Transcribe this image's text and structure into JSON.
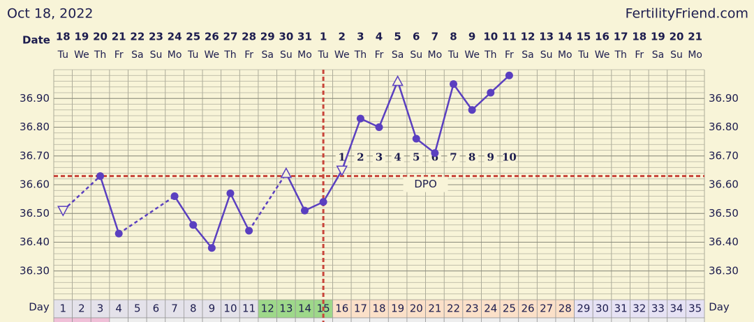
{
  "chart_data": {
    "type": "line",
    "header_date": "Oct 18, 2022",
    "site": "FertilityFriend.com",
    "date_label": "Date",
    "day_label": "Day",
    "dates": [
      "18",
      "19",
      "20",
      "21",
      "22",
      "23",
      "24",
      "25",
      "26",
      "27",
      "28",
      "29",
      "30",
      "31",
      "1",
      "2",
      "3",
      "4",
      "5",
      "6",
      "7",
      "8",
      "9",
      "10",
      "11",
      "12",
      "13",
      "14",
      "15",
      "16",
      "17",
      "18",
      "19",
      "20",
      "21"
    ],
    "weekdays": [
      "Tu",
      "We",
      "Th",
      "Fr",
      "Sa",
      "Su",
      "Mo",
      "Tu",
      "We",
      "Th",
      "Fr",
      "Sa",
      "Su",
      "Mo",
      "Tu",
      "We",
      "Th",
      "Fr",
      "Sa",
      "Su",
      "Mo",
      "Tu",
      "We",
      "Th",
      "Fr",
      "Sa",
      "Su",
      "Mo",
      "Tu",
      "We",
      "Th",
      "Fr",
      "Sa",
      "Su",
      "Mo"
    ],
    "categories": [
      1,
      2,
      3,
      4,
      5,
      6,
      7,
      8,
      9,
      10,
      11,
      12,
      13,
      14,
      15,
      16,
      17,
      18,
      19,
      20,
      21,
      22,
      23,
      24,
      25,
      26,
      27,
      28,
      29,
      30,
      31,
      32,
      33,
      34,
      35
    ],
    "series": [
      {
        "name": "Temperature",
        "color": "#5a3fc0",
        "values": [
          36.51,
          null,
          36.63,
          36.43,
          null,
          null,
          36.56,
          36.46,
          36.38,
          36.57,
          36.44,
          null,
          36.64,
          36.51,
          36.54,
          36.65,
          36.83,
          36.8,
          36.96,
          36.76,
          36.71,
          36.95,
          36.86,
          36.92,
          36.98,
          null,
          null,
          null,
          null,
          null,
          null,
          null,
          null,
          null,
          null
        ],
        "markers": [
          "triangle-down",
          null,
          "dot",
          "dot",
          null,
          null,
          "dot",
          "dot",
          "dot",
          "dot",
          "dot",
          null,
          "triangle-up",
          "dot",
          "dot",
          "triangle-down",
          "dot",
          "dot",
          "triangle-up",
          "dot",
          "dot",
          "dot",
          "dot",
          "dot",
          "dot",
          null,
          null,
          null,
          null,
          null,
          null,
          null,
          null,
          null,
          null
        ]
      }
    ],
    "day_colors": [
      "#e4e2ea",
      "#e4e2ea",
      "#e4e2ea",
      "#e4e2ea",
      "#e4e2ea",
      "#e4e2ea",
      "#e4e2ea",
      "#e4e2ea",
      "#e4e2ea",
      "#e4e2ea",
      "#e4e2ea",
      "#9ed88a",
      "#9ed88a",
      "#9ed88a",
      "#9ed88a",
      "#fbe0c8",
      "#fbe0c8",
      "#fbe0c8",
      "#fbe0c8",
      "#fbe0c8",
      "#fbe0c8",
      "#fbe0c8",
      "#fbe0c8",
      "#fbe0c8",
      "#fbe0c8",
      "#fbe0c8",
      "#fbe0c8",
      "#fbe0c8",
      "#e6e2f4",
      "#e6e2f4",
      "#e6e2f4",
      "#e6e2f4",
      "#e6e2f4",
      "#e6e2f4",
      "#e6e2f4"
    ],
    "coverline": 36.63,
    "ovulation_day": 15,
    "line_color_marker": "#c8443a",
    "dpo": [
      null,
      null,
      null,
      null,
      null,
      null,
      null,
      null,
      null,
      null,
      null,
      null,
      null,
      null,
      null,
      1,
      2,
      3,
      4,
      5,
      6,
      7,
      8,
      9,
      10,
      null,
      null,
      null,
      null,
      null,
      null,
      null,
      null,
      null,
      null
    ],
    "dpo_label": "DPO",
    "ylim": [
      36.2,
      37.0
    ],
    "yticks": [
      {
        "value": 36.3,
        "label": "36.30"
      },
      {
        "value": 36.4,
        "label": "36.40"
      },
      {
        "value": 36.5,
        "label": "36.50"
      },
      {
        "value": 36.6,
        "label": "36.60"
      },
      {
        "value": 36.7,
        "label": "36.70"
      },
      {
        "value": 36.8,
        "label": "36.80"
      },
      {
        "value": 36.9,
        "label": "36.90"
      }
    ],
    "minor_grid_step": 0.02,
    "grid": true
  }
}
